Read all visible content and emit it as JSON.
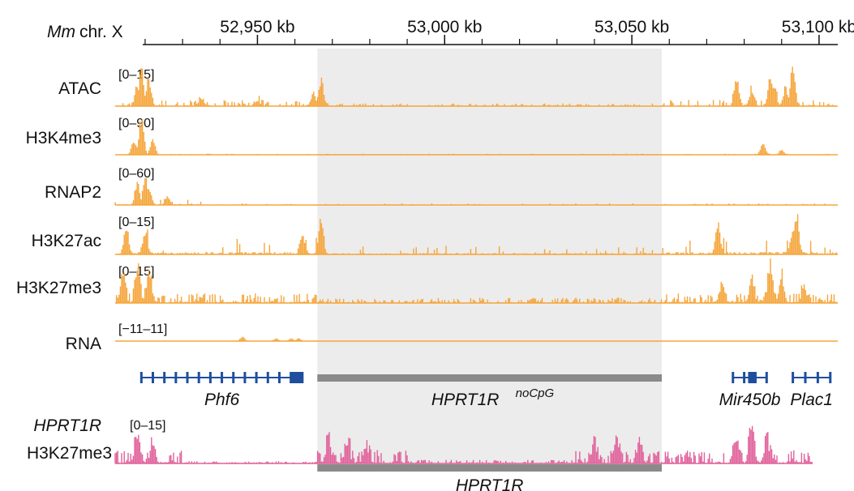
{
  "chart_data": {
    "type": "area",
    "genome": {
      "species_label": "Mm",
      "chrom_label": "chr. X",
      "x_unit": "kb",
      "xlim": [
        52912,
        53105
      ],
      "ticks": [
        {
          "value": 52950,
          "label": "52,950 kb"
        },
        {
          "value": 53000,
          "label": "53,000 kb"
        },
        {
          "value": 53050,
          "label": "53,050 kb"
        },
        {
          "value": 53100,
          "label": "53,100 kb"
        }
      ]
    },
    "highlight_region": [
      52966,
      53058
    ],
    "colors": {
      "mouse_tracks": "#f5a53b",
      "human_track": "#e0609a",
      "genes": "#1f4e9e",
      "transgene_bar": "#8a8a8a",
      "highlight": "#ececec"
    },
    "series": [
      {
        "name": "ATAC",
        "range_label": "[0–15]",
        "ylim": [
          0,
          15
        ],
        "peaks": [
          {
            "x": 52919,
            "h": 14.5
          },
          {
            "x": 52918,
            "h": 8
          },
          {
            "x": 52921,
            "h": 9
          },
          {
            "x": 52967,
            "h": 10
          },
          {
            "x": 52965,
            "h": 5
          },
          {
            "x": 53078,
            "h": 10
          },
          {
            "x": 53082,
            "h": 6
          },
          {
            "x": 53087,
            "h": 9
          },
          {
            "x": 53088,
            "h": 7
          },
          {
            "x": 53093,
            "h": 14
          },
          {
            "x": 53091,
            "h": 6
          },
          {
            "x": 52935,
            "h": 3
          },
          {
            "x": 52950,
            "h": 2
          }
        ]
      },
      {
        "name": "H3K4me3",
        "range_label": "[0–90]",
        "ylim": [
          0,
          90
        ],
        "peaks": [
          {
            "x": 52919,
            "h": 85
          },
          {
            "x": 52917,
            "h": 30
          },
          {
            "x": 52922,
            "h": 35
          },
          {
            "x": 53085,
            "h": 25
          },
          {
            "x": 53090,
            "h": 10
          }
        ]
      },
      {
        "name": "RNAP2",
        "range_label": "[0–60]",
        "ylim": [
          0,
          60
        ],
        "peaks": [
          {
            "x": 52918,
            "h": 30
          },
          {
            "x": 52920,
            "h": 40
          },
          {
            "x": 52921,
            "h": 25
          },
          {
            "x": 52926,
            "h": 12
          }
        ]
      },
      {
        "name": "H3K27ac",
        "range_label": "[0–15]",
        "ylim": [
          0,
          15
        ],
        "peaks": [
          {
            "x": 52915,
            "h": 10
          },
          {
            "x": 52920,
            "h": 8
          },
          {
            "x": 52962,
            "h": 7
          },
          {
            "x": 52967,
            "h": 13
          },
          {
            "x": 53073,
            "h": 11
          },
          {
            "x": 53094,
            "h": 15
          },
          {
            "x": 53093,
            "h": 8
          }
        ]
      },
      {
        "name": "H3K27me3",
        "range_label": "[0–15]",
        "ylim": [
          0,
          15
        ],
        "peaks": [
          {
            "x": 52914,
            "h": 11
          },
          {
            "x": 52918,
            "h": 14
          },
          {
            "x": 52921,
            "h": 12
          },
          {
            "x": 53074,
            "h": 6
          },
          {
            "x": 53082,
            "h": 8
          },
          {
            "x": 53087,
            "h": 15
          },
          {
            "x": 53090,
            "h": 9
          },
          {
            "x": 53096,
            "h": 6
          }
        ]
      },
      {
        "name": "RNA",
        "range_label": "[−11–11]",
        "ylim": [
          -11,
          11
        ],
        "peaks": [
          {
            "x": 52946,
            "h": 3
          },
          {
            "x": 52955,
            "h": 2
          },
          {
            "x": 52959,
            "h": 2
          },
          {
            "x": 52961,
            "h": 2
          }
        ]
      }
    ],
    "genes": [
      {
        "name": "Phf6",
        "start": 52919,
        "end": 52962,
        "italic": true
      },
      {
        "name": "Mir450b",
        "start": 53077,
        "end": 53086,
        "italic": true
      },
      {
        "name": "Plac1",
        "start": 53093,
        "end": 53103,
        "italic": true
      }
    ],
    "transgene_bars": [
      {
        "name": "HPRT1R",
        "superscript": "noCpG",
        "start": 52966,
        "end": 53058
      },
      {
        "name": "HPRT1R",
        "superscript": "",
        "start": 52966,
        "end": 53058
      }
    ],
    "human_track": {
      "label_line1": "HPRT1R",
      "label_line2": "H3K27me3",
      "range_label": "[0–15]",
      "ylim": [
        0,
        15
      ],
      "peaks": [
        {
          "x": 52918,
          "h": 11
        },
        {
          "x": 52922,
          "h": 8
        },
        {
          "x": 52969,
          "h": 9
        },
        {
          "x": 52974,
          "h": 8
        },
        {
          "x": 52979,
          "h": 7
        },
        {
          "x": 53040,
          "h": 7
        },
        {
          "x": 53046,
          "h": 9
        },
        {
          "x": 53052,
          "h": 8
        },
        {
          "x": 53078,
          "h": 10
        },
        {
          "x": 53082,
          "h": 13
        },
        {
          "x": 53086,
          "h": 8
        }
      ]
    }
  }
}
